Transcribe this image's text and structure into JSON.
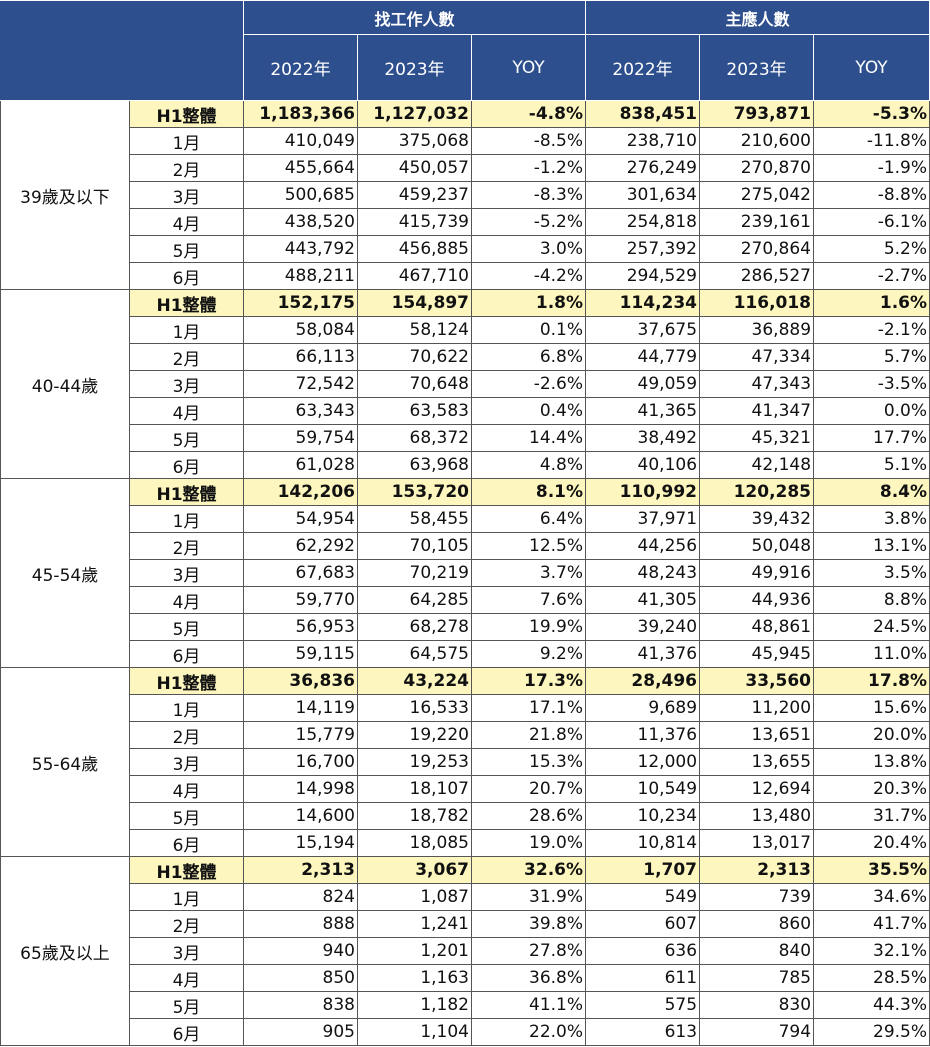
{
  "header": {
    "group1": "找工作人數",
    "group2": "主應人數",
    "cols": [
      "2022年",
      "2023年",
      "YOY",
      "2022年",
      "2023年",
      "YOY"
    ]
  },
  "groups": [
    {
      "name": "39歲及以下",
      "rows": [
        {
          "label": "H1整體",
          "values": [
            "1,183,366",
            "1,127,032",
            "-4.8%",
            "838,451",
            "793,871",
            "-5.3%"
          ]
        },
        {
          "label": "1月",
          "values": [
            "410,049",
            "375,068",
            "-8.5%",
            "238,710",
            "210,600",
            "-11.8%"
          ]
        },
        {
          "label": "2月",
          "values": [
            "455,664",
            "450,057",
            "-1.2%",
            "276,249",
            "270,870",
            "-1.9%"
          ]
        },
        {
          "label": "3月",
          "values": [
            "500,685",
            "459,237",
            "-8.3%",
            "301,634",
            "275,042",
            "-8.8%"
          ]
        },
        {
          "label": "4月",
          "values": [
            "438,520",
            "415,739",
            "-5.2%",
            "254,818",
            "239,161",
            "-6.1%"
          ]
        },
        {
          "label": "5月",
          "values": [
            "443,792",
            "456,885",
            "3.0%",
            "257,392",
            "270,864",
            "5.2%"
          ]
        },
        {
          "label": "6月",
          "values": [
            "488,211",
            "467,710",
            "-4.2%",
            "294,529",
            "286,527",
            "-2.7%"
          ]
        }
      ]
    },
    {
      "name": "40-44歲",
      "rows": [
        {
          "label": "H1整體",
          "values": [
            "152,175",
            "154,897",
            "1.8%",
            "114,234",
            "116,018",
            "1.6%"
          ]
        },
        {
          "label": "1月",
          "values": [
            "58,084",
            "58,124",
            "0.1%",
            "37,675",
            "36,889",
            "-2.1%"
          ]
        },
        {
          "label": "2月",
          "values": [
            "66,113",
            "70,622",
            "6.8%",
            "44,779",
            "47,334",
            "5.7%"
          ]
        },
        {
          "label": "3月",
          "values": [
            "72,542",
            "70,648",
            "-2.6%",
            "49,059",
            "47,343",
            "-3.5%"
          ]
        },
        {
          "label": "4月",
          "values": [
            "63,343",
            "63,583",
            "0.4%",
            "41,365",
            "41,347",
            "0.0%"
          ]
        },
        {
          "label": "5月",
          "values": [
            "59,754",
            "68,372",
            "14.4%",
            "38,492",
            "45,321",
            "17.7%"
          ]
        },
        {
          "label": "6月",
          "values": [
            "61,028",
            "63,968",
            "4.8%",
            "40,106",
            "42,148",
            "5.1%"
          ]
        }
      ]
    },
    {
      "name": "45-54歲",
      "rows": [
        {
          "label": "H1整體",
          "values": [
            "142,206",
            "153,720",
            "8.1%",
            "110,992",
            "120,285",
            "8.4%"
          ]
        },
        {
          "label": "1月",
          "values": [
            "54,954",
            "58,455",
            "6.4%",
            "37,971",
            "39,432",
            "3.8%"
          ]
        },
        {
          "label": "2月",
          "values": [
            "62,292",
            "70,105",
            "12.5%",
            "44,256",
            "50,048",
            "13.1%"
          ]
        },
        {
          "label": "3月",
          "values": [
            "67,683",
            "70,219",
            "3.7%",
            "48,243",
            "49,916",
            "3.5%"
          ]
        },
        {
          "label": "4月",
          "values": [
            "59,770",
            "64,285",
            "7.6%",
            "41,305",
            "44,936",
            "8.8%"
          ]
        },
        {
          "label": "5月",
          "values": [
            "56,953",
            "68,278",
            "19.9%",
            "39,240",
            "48,861",
            "24.5%"
          ]
        },
        {
          "label": "6月",
          "values": [
            "59,115",
            "64,575",
            "9.2%",
            "41,376",
            "45,945",
            "11.0%"
          ]
        }
      ]
    },
    {
      "name": "55-64歲",
      "rows": [
        {
          "label": "H1整體",
          "values": [
            "36,836",
            "43,224",
            "17.3%",
            "28,496",
            "33,560",
            "17.8%"
          ]
        },
        {
          "label": "1月",
          "values": [
            "14,119",
            "16,533",
            "17.1%",
            "9,689",
            "11,200",
            "15.6%"
          ]
        },
        {
          "label": "2月",
          "values": [
            "15,779",
            "19,220",
            "21.8%",
            "11,376",
            "13,651",
            "20.0%"
          ]
        },
        {
          "label": "3月",
          "values": [
            "16,700",
            "19,253",
            "15.3%",
            "12,000",
            "13,655",
            "13.8%"
          ]
        },
        {
          "label": "4月",
          "values": [
            "14,998",
            "18,107",
            "20.7%",
            "10,549",
            "12,694",
            "20.3%"
          ]
        },
        {
          "label": "5月",
          "values": [
            "14,600",
            "18,782",
            "28.6%",
            "10,234",
            "13,480",
            "31.7%"
          ]
        },
        {
          "label": "6月",
          "values": [
            "15,194",
            "18,085",
            "19.0%",
            "10,814",
            "13,017",
            "20.4%"
          ]
        }
      ]
    },
    {
      "name": "65歲及以上",
      "rows": [
        {
          "label": "H1整體",
          "values": [
            "2,313",
            "3,067",
            "32.6%",
            "1,707",
            "2,313",
            "35.5%"
          ]
        },
        {
          "label": "1月",
          "values": [
            "824",
            "1,087",
            "31.9%",
            "549",
            "739",
            "34.6%"
          ]
        },
        {
          "label": "2月",
          "values": [
            "888",
            "1,241",
            "39.8%",
            "607",
            "860",
            "41.7%"
          ]
        },
        {
          "label": "3月",
          "values": [
            "940",
            "1,201",
            "27.8%",
            "636",
            "840",
            "32.1%"
          ]
        },
        {
          "label": "4月",
          "values": [
            "850",
            "1,163",
            "36.8%",
            "611",
            "785",
            "28.5%"
          ]
        },
        {
          "label": "5月",
          "values": [
            "838",
            "1,182",
            "41.1%",
            "575",
            "830",
            "44.3%"
          ]
        },
        {
          "label": "6月",
          "values": [
            "905",
            "1,104",
            "22.0%",
            "613",
            "794",
            "29.5%"
          ]
        }
      ]
    }
  ],
  "colors": {
    "header_bg": "#2e4f8e",
    "total_row_bg": "#fdf7bf",
    "border": "#555555"
  }
}
